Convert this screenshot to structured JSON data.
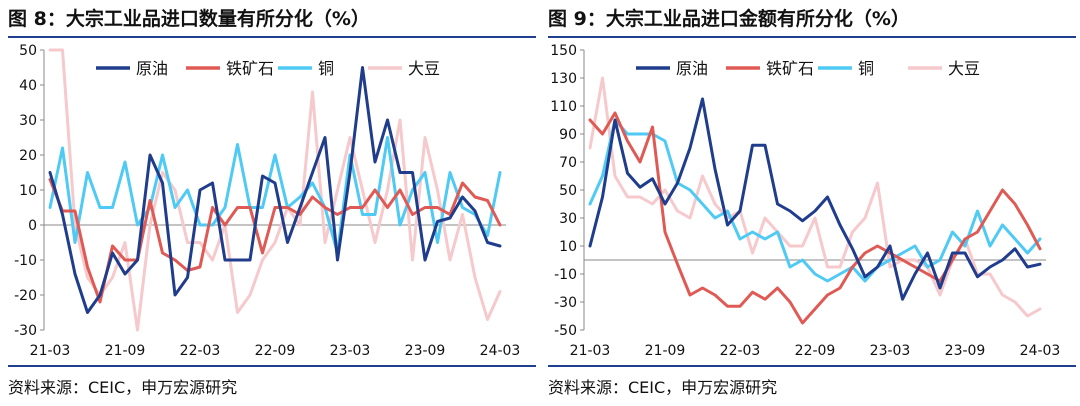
{
  "charts": [
    {
      "title": "图 8：大宗工业品进口数量有所分化（%）",
      "source": "资料来源：CEIC，申万宏源研究"
    },
    {
      "title": "图 9：大宗工业品进口金额有所分化（%）",
      "source": "资料来源：CEIC，申万宏源研究"
    }
  ],
  "chart_data": [
    {
      "type": "line",
      "title": "图 8：大宗工业品进口数量有所分化（%）",
      "xlabel": "",
      "ylabel": "",
      "ylim": [
        -30,
        50
      ],
      "yticks": [
        -30,
        -20,
        -10,
        0,
        10,
        20,
        30,
        40,
        50
      ],
      "x_start": "21-03",
      "x_end": "24-03",
      "x_tick_labels": [
        "21-03",
        "21-09",
        "22-03",
        "22-09",
        "23-03",
        "23-09",
        "24-03"
      ],
      "x_tick_index": [
        0,
        6,
        12,
        18,
        24,
        30,
        36
      ],
      "legend": "top",
      "grid": false,
      "series": [
        {
          "name": "原油",
          "color": "#1f3d8c",
          "values": [
            15,
            3,
            -14,
            -25,
            -20,
            -8,
            -14,
            -10,
            20,
            12,
            -20,
            -15,
            10,
            12,
            -10,
            -10,
            -10,
            14,
            12,
            -5,
            5,
            15,
            25,
            -10,
            15,
            45,
            18,
            30,
            15,
            15,
            -10,
            1,
            2,
            8,
            4,
            -5,
            -6
          ]
        },
        {
          "name": "铁矿石",
          "color": "#e05a55",
          "values": [
            13,
            4,
            4,
            -12,
            -22,
            -6,
            -10,
            -10,
            7,
            -8,
            -10,
            -13,
            -12,
            5,
            0,
            5,
            5,
            -8,
            5,
            5,
            3,
            8,
            5,
            3,
            5,
            5,
            10,
            5,
            10,
            3,
            5,
            5,
            3,
            12,
            8,
            7,
            0
          ]
        },
        {
          "name": "铜",
          "color": "#4fcaf4",
          "values": [
            5,
            22,
            -5,
            15,
            5,
            5,
            18,
            0,
            5,
            20,
            5,
            10,
            0,
            0,
            5,
            23,
            5,
            5,
            20,
            5,
            8,
            12,
            5,
            -8,
            20,
            3,
            3,
            25,
            0,
            10,
            15,
            -5,
            15,
            5,
            3,
            -3,
            15
          ]
        },
        {
          "name": "大豆",
          "color": "#f6c9cc",
          "values": [
            50,
            50,
            0,
            -15,
            -20,
            -15,
            -5,
            -30,
            0,
            15,
            10,
            -5,
            -5,
            -10,
            0,
            -25,
            -20,
            -10,
            -5,
            5,
            0,
            38,
            -5,
            10,
            25,
            10,
            -5,
            10,
            30,
            -10,
            25,
            10,
            -10,
            3,
            -15,
            -27,
            -19
          ]
        }
      ]
    },
    {
      "type": "line",
      "title": "图 9：大宗工业品进口金额有所分化（%）",
      "xlabel": "",
      "ylabel": "",
      "ylim": [
        -50,
        150
      ],
      "yticks": [
        -50,
        -30,
        -10,
        10,
        30,
        50,
        70,
        90,
        110,
        130,
        150
      ],
      "x_start": "21-03",
      "x_end": "24-03",
      "x_tick_labels": [
        "21-03",
        "21-09",
        "22-03",
        "22-09",
        "23-03",
        "23-09",
        "24-03"
      ],
      "x_tick_index": [
        0,
        6,
        12,
        18,
        24,
        30,
        36
      ],
      "legend": "top",
      "grid": false,
      "series": [
        {
          "name": "原油",
          "color": "#1f3d8c",
          "values": [
            10,
            45,
            100,
            62,
            52,
            58,
            40,
            55,
            80,
            115,
            65,
            25,
            35,
            82,
            82,
            40,
            35,
            28,
            35,
            45,
            25,
            8,
            -12,
            -5,
            10,
            -28,
            -10,
            5,
            -20,
            5,
            5,
            -12,
            -5,
            0,
            8,
            -5,
            -3
          ]
        },
        {
          "name": "铁矿石",
          "color": "#e05a55",
          "values": [
            100,
            90,
            105,
            85,
            70,
            95,
            20,
            -3,
            -25,
            -20,
            -25,
            -33,
            -33,
            -23,
            -28,
            -20,
            -30,
            -45,
            -35,
            -25,
            -20,
            -5,
            5,
            10,
            5,
            0,
            -5,
            -10,
            -15,
            0,
            15,
            20,
            35,
            50,
            40,
            25,
            8
          ]
        },
        {
          "name": "铜",
          "color": "#4fcaf4",
          "values": [
            40,
            60,
            100,
            90,
            90,
            90,
            85,
            55,
            50,
            40,
            30,
            35,
            15,
            20,
            15,
            20,
            -5,
            0,
            -10,
            -15,
            -10,
            -5,
            -15,
            -5,
            0,
            5,
            10,
            -5,
            0,
            20,
            10,
            35,
            10,
            25,
            15,
            5,
            15
          ]
        },
        {
          "name": "大豆",
          "color": "#f6c9cc",
          "values": [
            80,
            130,
            60,
            45,
            45,
            40,
            50,
            35,
            30,
            60,
            40,
            30,
            35,
            5,
            30,
            20,
            10,
            10,
            30,
            -5,
            -5,
            20,
            30,
            55,
            -5,
            0,
            0,
            -5,
            -25,
            0,
            15,
            -10,
            -10,
            -25,
            -30,
            -40,
            -35
          ]
        }
      ]
    }
  ]
}
